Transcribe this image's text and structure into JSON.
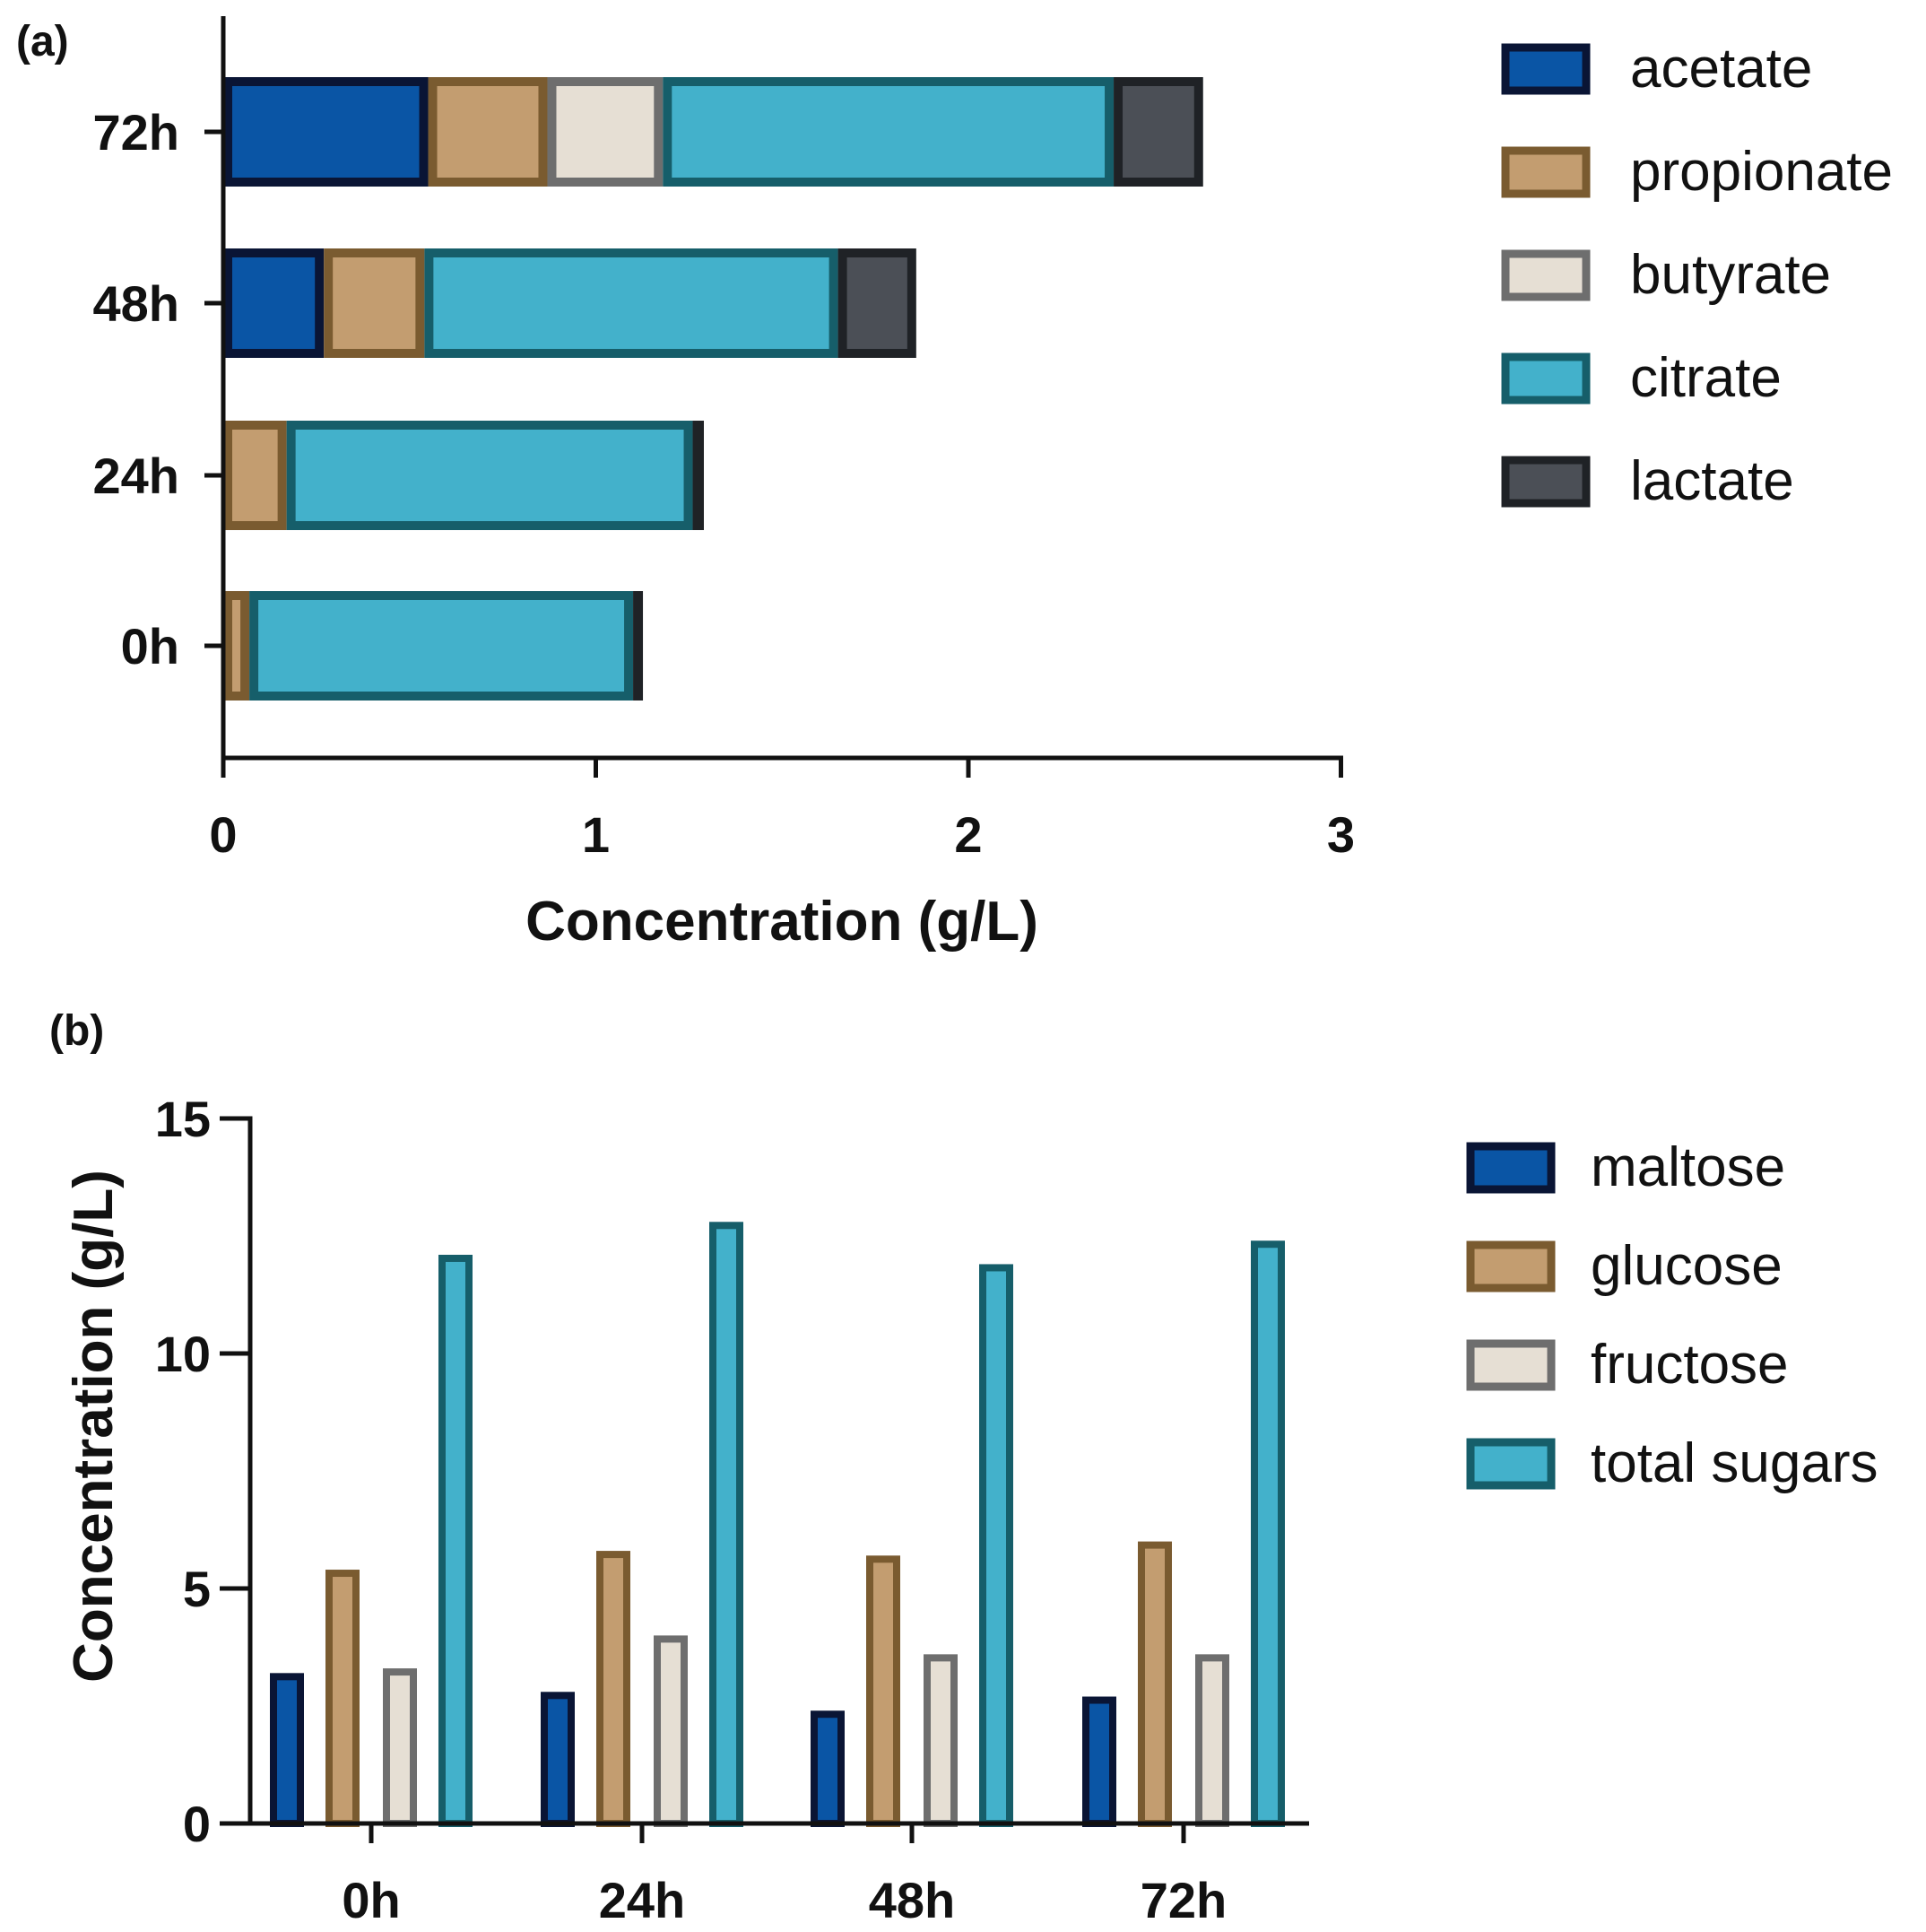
{
  "chart_data": [
    {
      "panel": "(a)",
      "type": "bar",
      "orientation": "horizontal",
      "stacked": true,
      "categories": [
        "0h",
        "24h",
        "48h",
        "72h"
      ],
      "xlabel": "Concentration (g/L)",
      "ylabel": "",
      "xlim": [
        0,
        3
      ],
      "xticks": [
        "0",
        "1",
        "2",
        "3"
      ],
      "grid": false,
      "legend_position": "right",
      "series": [
        {
          "name": "acetate",
          "values": [
            0,
            0,
            0.27,
            0.55
          ],
          "fill": "#0A55A5",
          "stroke": "#0A1535"
        },
        {
          "name": "propionate",
          "values": [
            0.07,
            0.17,
            0.27,
            0.32
          ],
          "fill": "#C39D70",
          "stroke": "#7A5B30"
        },
        {
          "name": "butyrate",
          "values": [
            0,
            0,
            0,
            0.31
          ],
          "fill": "#E6DFD4",
          "stroke": "#6E6E6E"
        },
        {
          "name": "citrate",
          "values": [
            1.03,
            1.09,
            1.11,
            1.21
          ],
          "fill": "#43B1CB",
          "stroke": "#165E6A"
        },
        {
          "name": "lactate",
          "values": [
            0.01,
            0.03,
            0.21,
            0.24
          ],
          "fill": "#4B4F56",
          "stroke": "#1F2226"
        }
      ]
    },
    {
      "panel": "(b)",
      "type": "bar",
      "orientation": "vertical",
      "stacked": false,
      "categories": [
        "0h",
        "24h",
        "48h",
        "72h"
      ],
      "xlabel": "",
      "ylabel": "Concentration (g/L)",
      "ylim": [
        0,
        15
      ],
      "yticks": [
        "0",
        "5",
        "10",
        "15"
      ],
      "grid": false,
      "legend_position": "right",
      "series": [
        {
          "name": "maltose",
          "values": [
            3.2,
            2.8,
            2.4,
            2.7
          ],
          "fill": "#0A55A5",
          "stroke": "#0A1535"
        },
        {
          "name": "glucose",
          "values": [
            5.4,
            5.8,
            5.7,
            6.0
          ],
          "fill": "#C39D70",
          "stroke": "#7A5B30"
        },
        {
          "name": "fructose",
          "values": [
            3.3,
            4.0,
            3.6,
            3.6
          ],
          "fill": "#E6DFD4",
          "stroke": "#6E6E6E"
        },
        {
          "name": "total sugars",
          "values": [
            12.1,
            12.8,
            11.9,
            12.4
          ],
          "fill": "#43B1CB",
          "stroke": "#165E6A"
        }
      ]
    }
  ]
}
